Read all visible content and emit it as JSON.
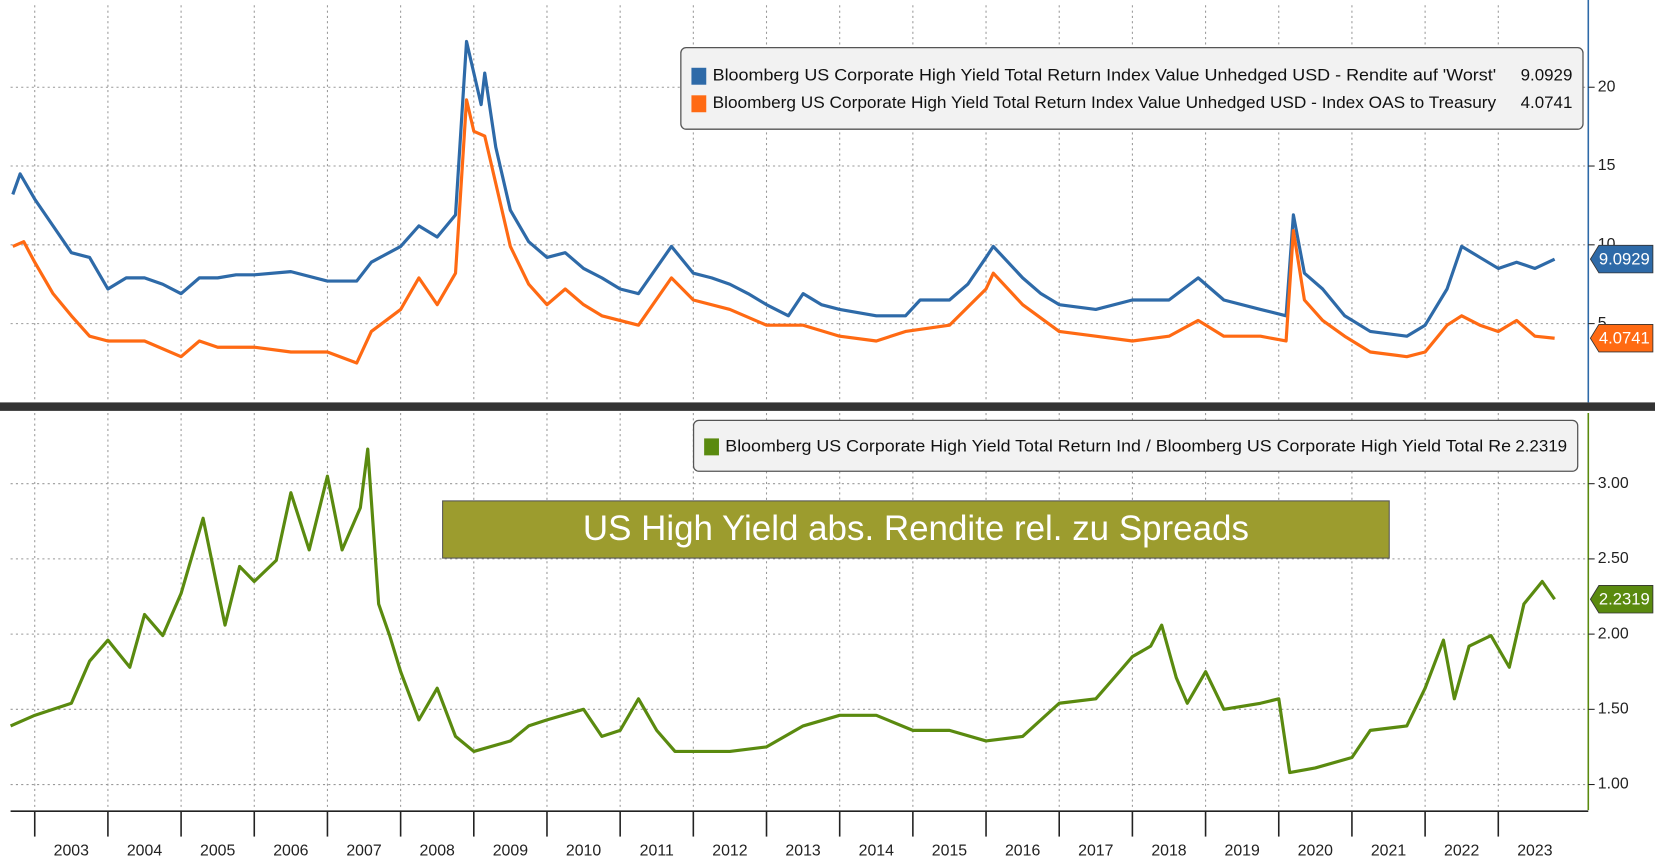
{
  "chart_data": [
    {
      "type": "line",
      "xlim": [
        2002.67,
        2024.23
      ],
      "ylim": [
        0,
        25.2
      ],
      "yticks": [
        5,
        10,
        15,
        20
      ],
      "xticks": [
        2003,
        2004,
        2005,
        2006,
        2007,
        2008,
        2009,
        2010,
        2011,
        2012,
        2013,
        2014,
        2015,
        2016,
        2017,
        2018,
        2019,
        2020,
        2021,
        2022,
        2023
      ],
      "grid": true,
      "series": [
        {
          "name": "Bloomberg US Corporate High Yield Total Return Index Value Unhedged USD - Rendite auf 'Worst'",
          "color": "#2e6aa8",
          "last_value": 9.0929,
          "x": [
            2002.7,
            2002.8,
            2003.0,
            2003.25,
            2003.5,
            2003.75,
            2004.0,
            2004.25,
            2004.5,
            2004.75,
            2005.0,
            2005.25,
            2005.5,
            2005.75,
            2006.0,
            2006.5,
            2007.0,
            2007.4,
            2007.6,
            2008.0,
            2008.25,
            2008.5,
            2008.75,
            2008.9,
            2009.0,
            2009.1,
            2009.15,
            2009.3,
            2009.5,
            2009.75,
            2010.0,
            2010.25,
            2010.5,
            2010.75,
            2011.0,
            2011.25,
            2011.7,
            2012.0,
            2012.25,
            2012.5,
            2012.75,
            2013.0,
            2013.3,
            2013.5,
            2013.75,
            2014.0,
            2014.5,
            2014.9,
            2015.1,
            2015.5,
            2015.75,
            2016.0,
            2016.1,
            2016.5,
            2016.75,
            2017.0,
            2017.5,
            2018.0,
            2018.5,
            2018.9,
            2019.25,
            2019.75,
            2020.1,
            2020.2,
            2020.35,
            2020.6,
            2020.9,
            2021.25,
            2021.75,
            2022.0,
            2022.3,
            2022.5,
            2022.75,
            2023.0,
            2023.25,
            2023.5,
            2023.77
          ],
          "values": [
            13.2,
            14.5,
            12.9,
            11.2,
            9.5,
            9.2,
            7.2,
            7.9,
            7.9,
            7.5,
            6.9,
            7.9,
            7.9,
            8.1,
            8.1,
            8.3,
            7.7,
            7.7,
            8.9,
            9.9,
            11.2,
            10.5,
            11.9,
            22.9,
            20.9,
            18.9,
            20.9,
            16.2,
            12.2,
            10.2,
            9.2,
            9.5,
            8.5,
            7.9,
            7.2,
            6.9,
            9.9,
            8.2,
            7.9,
            7.5,
            6.9,
            6.2,
            5.5,
            6.9,
            6.2,
            5.9,
            5.5,
            5.5,
            6.5,
            6.5,
            7.5,
            9.2,
            9.9,
            7.9,
            6.9,
            6.2,
            5.9,
            6.5,
            6.5,
            7.9,
            6.5,
            5.9,
            5.5,
            11.9,
            8.2,
            7.2,
            5.5,
            4.5,
            4.2,
            4.9,
            7.2,
            9.9,
            9.2,
            8.5,
            8.9,
            8.5,
            9.09
          ]
        },
        {
          "name": "Bloomberg US Corporate High Yield Total Return Index Value Unhedged USD - Index OAS to Treasury",
          "color": "#ff6a13",
          "last_value": 4.0741,
          "x": [
            2002.7,
            2002.85,
            2003.0,
            2003.25,
            2003.5,
            2003.75,
            2004.0,
            2004.5,
            2005.0,
            2005.25,
            2005.5,
            2006.0,
            2006.5,
            2007.0,
            2007.4,
            2007.6,
            2008.0,
            2008.25,
            2008.5,
            2008.75,
            2008.9,
            2009.0,
            2009.15,
            2009.3,
            2009.5,
            2009.75,
            2010.0,
            2010.25,
            2010.5,
            2010.75,
            2011.25,
            2011.7,
            2012.0,
            2012.5,
            2013.0,
            2013.5,
            2014.0,
            2014.5,
            2014.9,
            2015.5,
            2016.0,
            2016.1,
            2016.5,
            2017.0,
            2017.5,
            2018.0,
            2018.5,
            2018.9,
            2019.25,
            2019.75,
            2020.1,
            2020.2,
            2020.35,
            2020.6,
            2020.9,
            2021.25,
            2021.75,
            2022.0,
            2022.3,
            2022.5,
            2022.75,
            2023.0,
            2023.25,
            2023.5,
            2023.77
          ],
          "values": [
            9.9,
            10.2,
            8.9,
            6.9,
            5.5,
            4.2,
            3.9,
            3.9,
            2.9,
            3.9,
            3.5,
            3.5,
            3.2,
            3.2,
            2.5,
            4.5,
            5.9,
            7.9,
            6.2,
            8.2,
            19.2,
            17.2,
            16.9,
            13.9,
            9.9,
            7.5,
            6.2,
            7.2,
            6.2,
            5.5,
            4.9,
            7.9,
            6.5,
            5.9,
            4.9,
            4.9,
            4.2,
            3.9,
            4.5,
            4.9,
            7.2,
            8.2,
            6.2,
            4.5,
            4.2,
            3.9,
            4.2,
            5.2,
            4.2,
            4.2,
            3.9,
            10.9,
            6.5,
            5.2,
            4.2,
            3.2,
            2.9,
            3.2,
            4.9,
            5.5,
            4.9,
            4.5,
            5.2,
            4.2,
            4.07
          ]
        }
      ]
    },
    {
      "type": "line",
      "xlim": [
        2002.67,
        2024.23
      ],
      "ylim": [
        0.83,
        3.47
      ],
      "yticks": [
        {
          "value": 1,
          "label": "1.00"
        },
        {
          "value": 1.5,
          "label": "1.50"
        },
        {
          "value": 2,
          "label": "2.00"
        },
        {
          "value": 2.5,
          "label": "2.50"
        },
        {
          "value": 3,
          "label": "3.00"
        }
      ],
      "xticks": [
        2003,
        2004,
        2005,
        2006,
        2007,
        2008,
        2009,
        2010,
        2011,
        2012,
        2013,
        2014,
        2015,
        2016,
        2017,
        2018,
        2019,
        2020,
        2021,
        2022,
        2023
      ],
      "grid": true,
      "annotation": "US High Yield abs. Rendite rel. zu Spreads",
      "series": [
        {
          "name": "Bloomberg US Corporate High Yield Total Return Ind / Bloomberg US Corporate High Yield Total Re",
          "color": "#5a8a0f",
          "last_value": 2.2319,
          "x": [
            2002.67,
            2003.0,
            2003.5,
            2003.75,
            2004.0,
            2004.3,
            2004.5,
            2004.75,
            2005.0,
            2005.3,
            2005.6,
            2005.8,
            2006.0,
            2006.3,
            2006.5,
            2006.75,
            2007.0,
            2007.2,
            2007.45,
            2007.55,
            2007.7,
            2007.85,
            2008.0,
            2008.25,
            2008.5,
            2008.75,
            2009.0,
            2009.5,
            2009.75,
            2010.0,
            2010.5,
            2010.75,
            2011.0,
            2011.25,
            2011.5,
            2011.75,
            2012.5,
            2013.0,
            2013.5,
            2014.0,
            2014.5,
            2015.0,
            2015.5,
            2016.0,
            2016.5,
            2017.0,
            2017.5,
            2017.75,
            2018.0,
            2018.25,
            2018.4,
            2018.6,
            2018.75,
            2019.0,
            2019.25,
            2019.75,
            2020.0,
            2020.15,
            2020.5,
            2021.0,
            2021.25,
            2021.75,
            2022.0,
            2022.25,
            2022.4,
            2022.6,
            2022.9,
            2023.15,
            2023.35,
            2023.6,
            2023.77
          ],
          "values": [
            1.39,
            1.46,
            1.54,
            1.82,
            1.96,
            1.78,
            2.13,
            1.99,
            2.27,
            2.77,
            2.06,
            2.45,
            2.35,
            2.49,
            2.94,
            2.56,
            3.05,
            2.56,
            2.84,
            3.23,
            2.2,
            1.99,
            1.75,
            1.43,
            1.64,
            1.32,
            1.22,
            1.29,
            1.39,
            1.43,
            1.5,
            1.32,
            1.36,
            1.57,
            1.36,
            1.22,
            1.22,
            1.25,
            1.39,
            1.46,
            1.46,
            1.36,
            1.36,
            1.29,
            1.32,
            1.54,
            1.57,
            1.71,
            1.85,
            1.92,
            2.06,
            1.71,
            1.54,
            1.75,
            1.5,
            1.54,
            1.57,
            1.08,
            1.11,
            1.18,
            1.36,
            1.39,
            1.64,
            1.96,
            1.57,
            1.92,
            1.99,
            1.78,
            2.2,
            2.35,
            2.2319
          ]
        }
      ]
    }
  ]
}
